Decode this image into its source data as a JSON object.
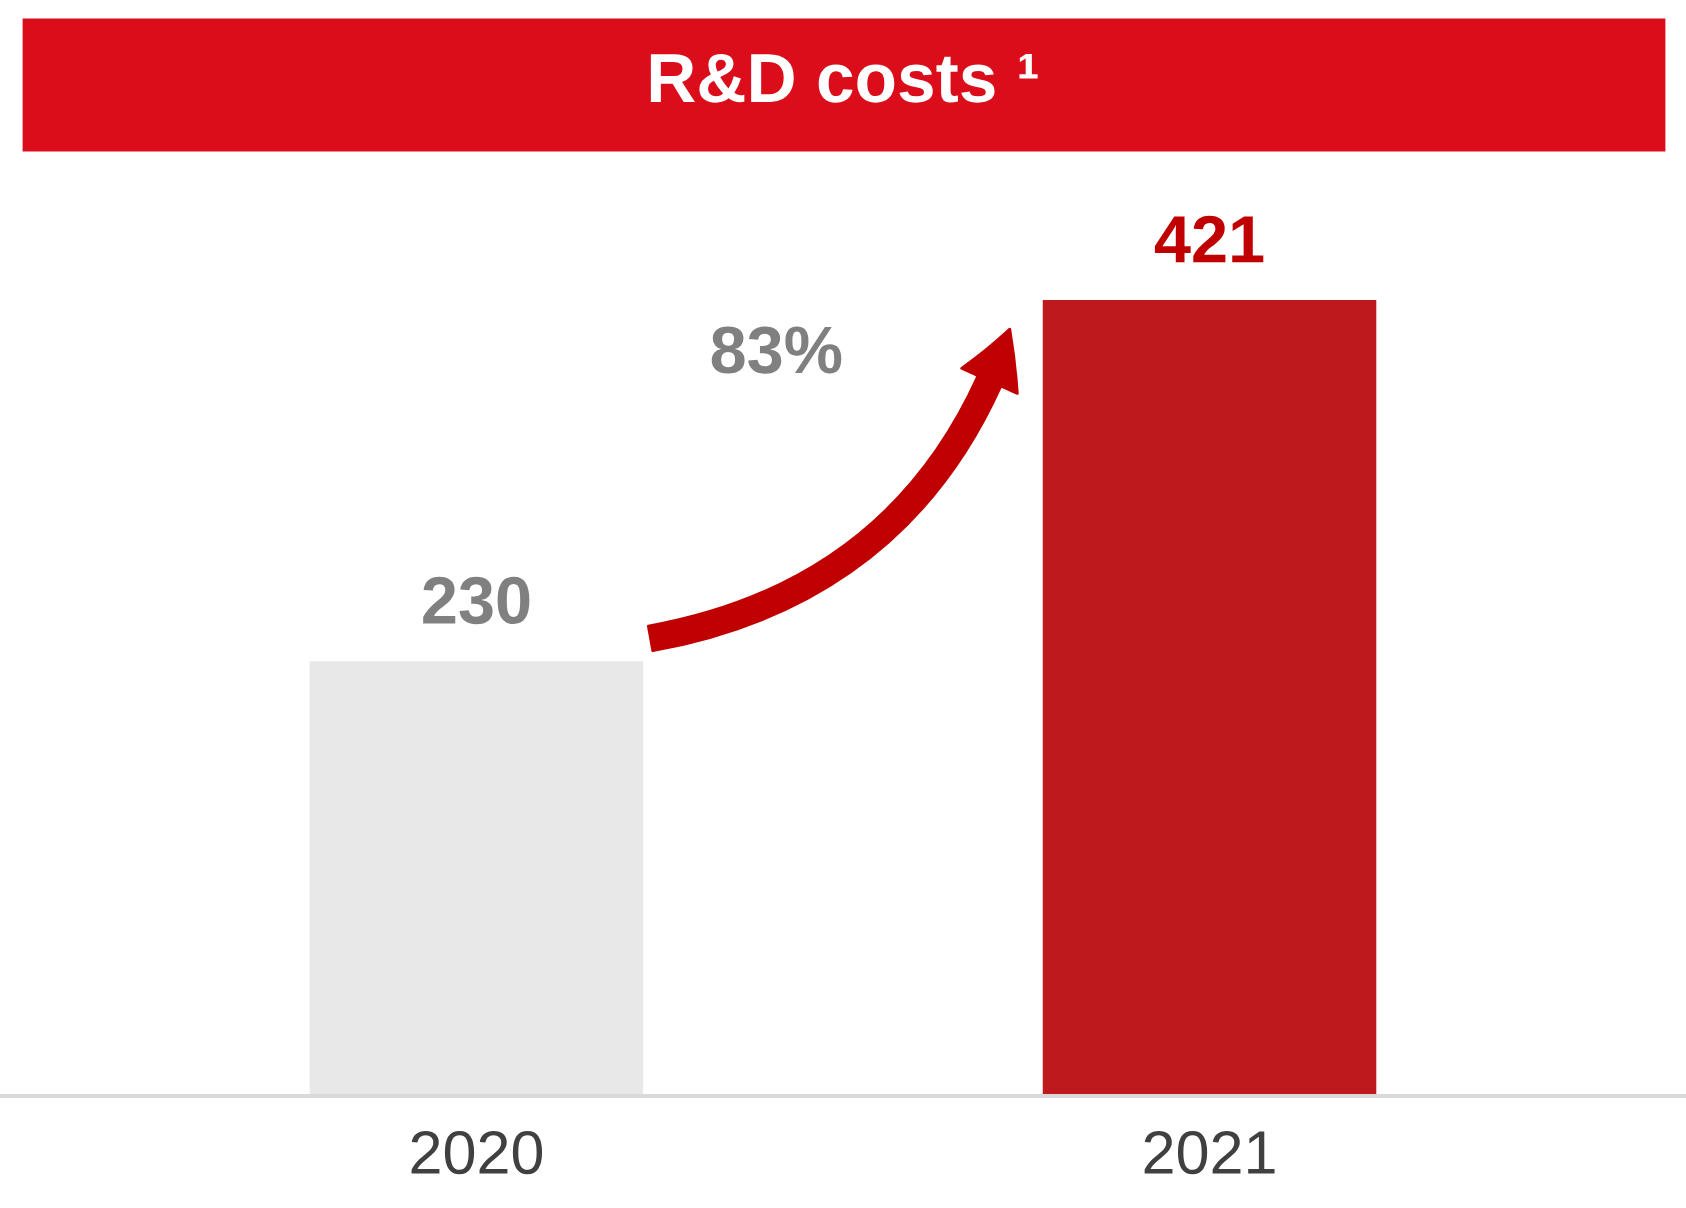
{
  "chart_data": {
    "type": "bar",
    "title": "R&D costs ¹",
    "categories": [
      "2020",
      "2021"
    ],
    "values": [
      230,
      421
    ],
    "colors": [
      "#e8e8e8",
      "#be1a1d"
    ],
    "data_labels": true,
    "annotations": [
      "83%"
    ]
  }
}
